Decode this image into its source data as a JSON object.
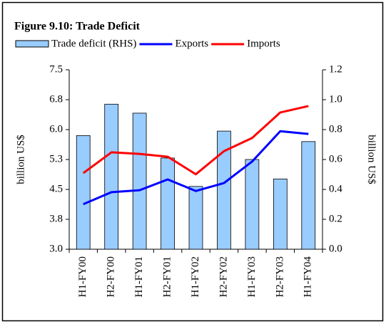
{
  "chart_data": {
    "type": "combo",
    "title": "Figure 9.10: Trade Deficit",
    "categories": [
      "H1-FY00",
      "H2-FY00",
      "H1-FY01",
      "H2-FY01",
      "H1-FY02",
      "H2-FY02",
      "H1-FY03",
      "H2-FY03",
      "H1-FY04"
    ],
    "series": [
      {
        "name": "Trade deficit (RHS)",
        "type": "bar",
        "axis": "y2",
        "color": "#99ccff",
        "values": [
          0.76,
          0.97,
          0.91,
          0.61,
          0.42,
          0.79,
          0.6,
          0.47,
          0.72
        ]
      },
      {
        "name": "Exports",
        "type": "line",
        "color": "#0000ff",
        "values": [
          4.13,
          4.43,
          4.48,
          4.75,
          4.46,
          4.66,
          5.2,
          5.96,
          5.89
        ]
      },
      {
        "name": "Imports",
        "type": "line",
        "color": "#ff0000",
        "values": [
          4.91,
          5.43,
          5.39,
          5.32,
          4.88,
          5.46,
          5.79,
          6.43,
          6.59
        ]
      }
    ],
    "ylabel": "billion US$",
    "y2label": "billion US$",
    "ylim": [
      3.0,
      7.5
    ],
    "yticks": [
      {
        "value": 3,
        "label": "3.0"
      },
      {
        "value": 3.75,
        "label": "3.8"
      },
      4.5,
      {
        "value": 5.25,
        "label": "5.3"
      },
      {
        "value": 6,
        "label": "6.0"
      },
      {
        "value": 6.75,
        "label": "6.8"
      },
      7.5
    ],
    "y2lim": [
      0,
      1.2
    ],
    "y2ticks": [
      {
        "value": 0,
        "label": "0.0"
      },
      0.2,
      0.4,
      0.6,
      0.8,
      {
        "value": 1,
        "label": "1.0"
      },
      1.2
    ],
    "grid": false
  }
}
